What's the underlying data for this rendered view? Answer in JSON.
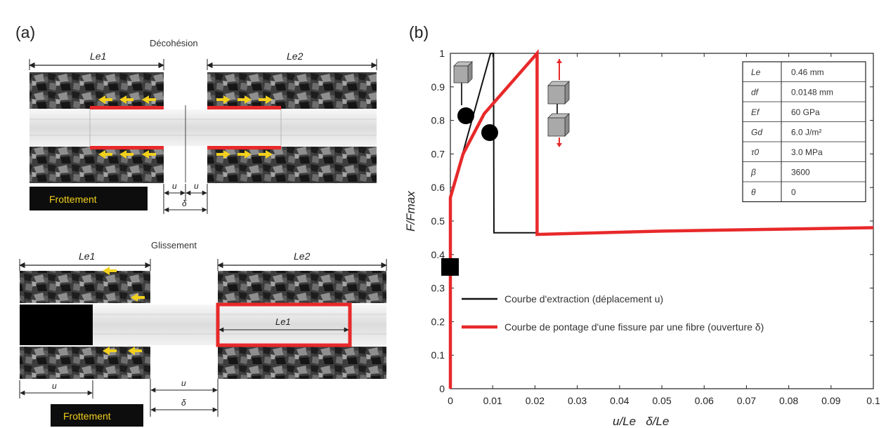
{
  "panel_a": {
    "label": "(a)",
    "debonding": {
      "title": "Décohésion",
      "le1_label": "Le1",
      "le2_label": "Le2",
      "u_label": "u",
      "u_label_2": "u",
      "delta_label": "δ",
      "friction_label": "Frottement"
    },
    "sliding": {
      "title": "Glissement",
      "le1_label": "Le1",
      "le2_label": "Le2",
      "le1_inner_label": "Le1",
      "u_label": "u",
      "u_label_2": "u",
      "delta_label": "δ",
      "friction_label": "Frottement"
    }
  },
  "panel_b": {
    "label": "(b)",
    "param_table": [
      {
        "symbol": "Le",
        "value": "0.46 mm"
      },
      {
        "symbol": "df",
        "value": "0.0148 mm"
      },
      {
        "symbol": "Ef",
        "value": "60 GPa"
      },
      {
        "symbol": "Gd",
        "value": "6.0 J/m²"
      },
      {
        "symbol": "τ0",
        "value": "3.0 MPa"
      },
      {
        "symbol": "β",
        "value": "3600"
      },
      {
        "symbol": "θ",
        "value": "0"
      }
    ],
    "colors": {
      "extraction": "#111111",
      "bridging": "#e8292a"
    }
  },
  "chart_data": {
    "type": "line",
    "xlabel": "u/Le   δ/Le",
    "ylabel": "F/Fmax",
    "xlim": [
      0,
      0.1
    ],
    "ylim": [
      0,
      1
    ],
    "x_ticks": [
      "0",
      "0.01",
      "0.02",
      "0.03",
      "0.04",
      "0.05",
      "0.06",
      "0.07",
      "0.08",
      "0.09",
      "0.1"
    ],
    "y_ticks": [
      "0",
      "0.1",
      "0.2",
      "0.3",
      "0.4",
      "0.5",
      "0.6",
      "0.7",
      "0.8",
      "0.9",
      "1"
    ],
    "legend_position": "bottom-left",
    "series": [
      {
        "name": "Courbe d'extraction (déplacement u)",
        "color": "#111111",
        "x": [
          0,
          0,
          0.0095,
          0.0098,
          0.0102,
          0.0103,
          0.0205,
          0.02
        ],
        "y": [
          0,
          0.57,
          1.0,
          1.0,
          1.0,
          0.465,
          0.465,
          0.465
        ]
      },
      {
        "name": "Courbe de pontage d'une fissure par une fibre (ouverture δ)",
        "color": "#e8292a",
        "x": [
          0,
          0,
          0.003,
          0.008,
          0.0205,
          0.0205,
          0.05,
          0.1
        ],
        "y": [
          0,
          0.57,
          0.7,
          0.82,
          1.0,
          0.46,
          0.47,
          0.48
        ]
      }
    ]
  }
}
